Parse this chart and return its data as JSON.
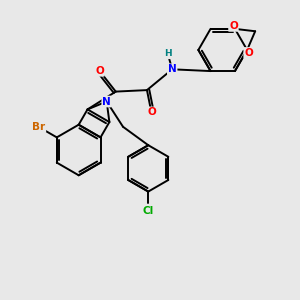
{
  "background_color": "#e8e8e8",
  "bond_color": "#000000",
  "atom_colors": {
    "Br": "#cc6600",
    "N": "#0000ff",
    "O": "#ff0000",
    "H": "#008080",
    "Cl": "#00aa00",
    "C": "#000000"
  },
  "figsize": [
    3.0,
    3.0
  ],
  "dpi": 100
}
